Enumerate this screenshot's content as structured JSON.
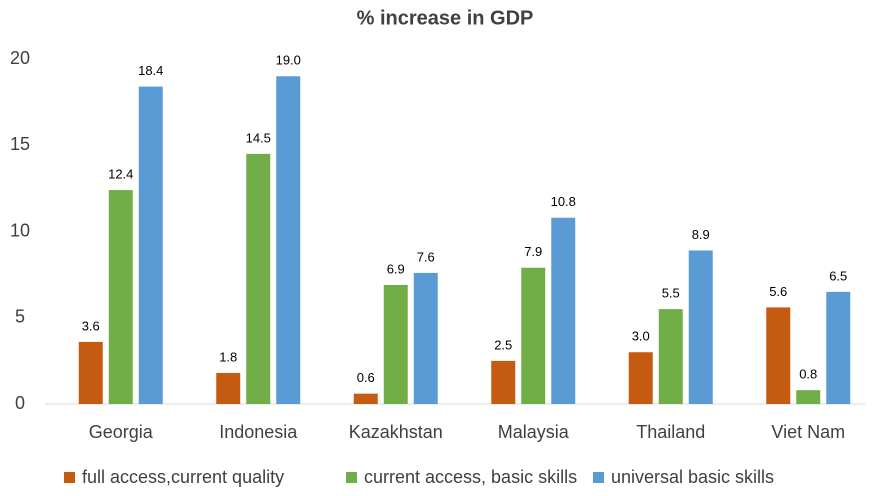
{
  "chart_data": {
    "type": "bar",
    "title": "% increase in GDP",
    "categories": [
      "Georgia",
      "Indonesia",
      "Kazakhstan",
      "Malaysia",
      "Thailand",
      "Viet Nam"
    ],
    "series": [
      {
        "name": "full access,current quality",
        "color": "#c55a11",
        "values": [
          3.6,
          1.8,
          0.6,
          2.5,
          3.0,
          5.6
        ],
        "value_labels": [
          "3.6",
          "1.8",
          "0.6",
          "2.5",
          "3.0",
          "5.6"
        ]
      },
      {
        "name": "current access, basic skills",
        "color": "#70ad47",
        "values": [
          12.4,
          14.5,
          6.9,
          7.9,
          5.5,
          0.8
        ],
        "value_labels": [
          "12.4",
          "14.5",
          "6.9",
          "7.9",
          "5.5",
          "0.8"
        ]
      },
      {
        "name": "universal basic skills",
        "color": "#5b9bd5",
        "values": [
          18.4,
          19.0,
          7.6,
          10.8,
          8.9,
          6.5
        ],
        "value_labels": [
          "18.4",
          "19.0",
          "7.6",
          "10.8",
          "8.9",
          "6.5"
        ]
      }
    ],
    "ylim": [
      0,
      20
    ],
    "yticks": [
      0,
      5,
      10,
      15,
      20
    ],
    "grid": false,
    "legend": "bottom"
  }
}
